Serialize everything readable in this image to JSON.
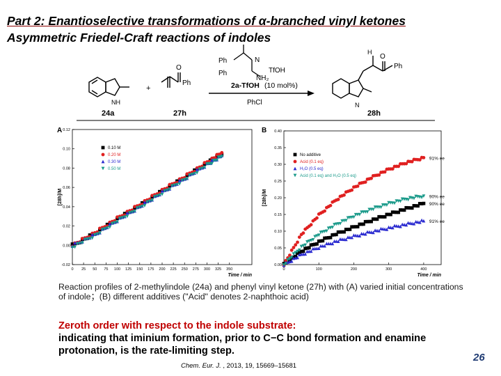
{
  "slide": {
    "title_line1": "Part 2: Enantioselective transformations of α-branched vinyl ketones",
    "title_line2": "Asymmetric Friedel-Craft reactions of indoles",
    "page_number": "26"
  },
  "scheme": {
    "reactant1_label": "24a",
    "reactant2_label": "27h",
    "plus": "+",
    "catalyst_label": "2a-TfOH",
    "catalyst_loading": "(10 mol%)",
    "acid_label": "TfOH",
    "solvent": "PhCl",
    "product_label": "28h",
    "ph1": "Ph",
    "ph2": "Ph",
    "ph3": "Ph",
    "n_label": "N",
    "nh2_label": "NH₂",
    "h_label": "H",
    "o_label": "O"
  },
  "caption": {
    "text": "Reaction profiles of 2-methylindole (24a) and phenyl vinyl ketone (27h) with (A) varied initial concentrations of indole；(B) different additives (\"Acid\" denotes 2-naphthoic acid)"
  },
  "conclusion": {
    "line1": "Zeroth order with respect to the indole substrate:",
    "line2": "indicating that iminium formation, prior to C−C bond formation and enamine protonation, is the rate-limiting step."
  },
  "citation": {
    "journal": "Chem. Eur. J.",
    "rest": "2013, 19, 15669–15681"
  },
  "chart_data": [
    {
      "type": "scatter",
      "panel_label": "A",
      "xlabel": "Time / min",
      "ylabel": "[28h]/M",
      "xlim": [
        0,
        400
      ],
      "ylim": [
        -0.02,
        0.12
      ],
      "xticks": [
        "0",
        "25",
        "50",
        "75",
        "100",
        "125",
        "150",
        "175",
        "200",
        "225",
        "250",
        "275",
        "300",
        "325",
        "350"
      ],
      "yticks": [
        "-0.02",
        "0.00",
        "0.02",
        "0.04",
        "0.06",
        "0.08",
        "0.10",
        "0.12"
      ],
      "legend_position": "top-left",
      "series": [
        {
          "name": "0.10 M",
          "color": "#000000",
          "marker": "square",
          "x": [
            0,
            50,
            100,
            150,
            200,
            250,
            300,
            333
          ],
          "y": [
            0.0,
            0.012,
            0.027,
            0.041,
            0.056,
            0.07,
            0.085,
            0.094
          ]
        },
        {
          "name": "0.20 M",
          "color": "#e02020",
          "marker": "circle",
          "x": [
            0,
            50,
            100,
            150,
            200,
            250,
            300,
            333
          ],
          "y": [
            0.0,
            0.013,
            0.028,
            0.042,
            0.057,
            0.071,
            0.086,
            0.096
          ]
        },
        {
          "name": "0.30 M",
          "color": "#2a2ad0",
          "marker": "triangle",
          "x": [
            0,
            50,
            100,
            150,
            200,
            250,
            300,
            333
          ],
          "y": [
            0.0,
            0.011,
            0.026,
            0.04,
            0.055,
            0.069,
            0.084,
            0.093
          ]
        },
        {
          "name": "0.50 M",
          "color": "#1a9a8a",
          "marker": "triangle-down",
          "x": [
            0,
            50,
            100,
            150,
            200,
            250,
            300,
            333
          ],
          "y": [
            -0.002,
            0.01,
            0.025,
            0.039,
            0.054,
            0.068,
            0.083,
            0.092
          ]
        }
      ]
    },
    {
      "type": "scatter",
      "panel_label": "B",
      "xlabel": "Time / min",
      "ylabel": "[28h]/M",
      "xlim": [
        0,
        450
      ],
      "ylim": [
        0.0,
        0.4
      ],
      "xticks": [
        "0",
        "100",
        "200",
        "300",
        "400"
      ],
      "yticks": [
        "0.00",
        "0.05",
        "0.10",
        "0.15",
        "0.20",
        "0.25",
        "0.30",
        "0.35",
        "0.40"
      ],
      "legend_position": "top-left",
      "series": [
        {
          "name": "No additive",
          "color": "#000000",
          "marker": "square",
          "x": [
            0,
            50,
            100,
            150,
            200,
            250,
            300,
            350,
            400
          ],
          "y": [
            0.0,
            0.04,
            0.068,
            0.092,
            0.112,
            0.132,
            0.15,
            0.167,
            0.183
          ],
          "annotation": "90% ee"
        },
        {
          "name": "Acid (0.1 eq)",
          "color": "#e02020",
          "marker": "circle",
          "x": [
            0,
            50,
            100,
            150,
            200,
            250,
            300,
            350,
            400
          ],
          "y": [
            0.0,
            0.09,
            0.148,
            0.194,
            0.23,
            0.26,
            0.285,
            0.305,
            0.32
          ],
          "annotation": "91% ee"
        },
        {
          "name": "H₂O (0.5 eq)",
          "color": "#2a2ad0",
          "marker": "triangle",
          "x": [
            0,
            50,
            100,
            150,
            200,
            250,
            300,
            350,
            400
          ],
          "y": [
            0.0,
            0.03,
            0.052,
            0.07,
            0.085,
            0.098,
            0.11,
            0.121,
            0.131
          ],
          "annotation": "91% ee"
        },
        {
          "name": "Acid (0.1 eq) and H₂O (0.5 eq)",
          "color": "#1a9a8a",
          "marker": "triangle-down",
          "x": [
            0,
            50,
            100,
            150,
            200,
            250,
            300,
            350,
            400
          ],
          "y": [
            0.0,
            0.052,
            0.09,
            0.12,
            0.145,
            0.165,
            0.182,
            0.196,
            0.205
          ],
          "annotation": "90% ee"
        }
      ]
    }
  ]
}
